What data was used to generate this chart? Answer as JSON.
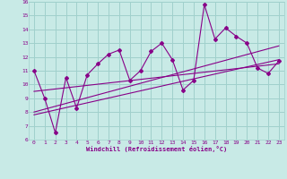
{
  "xlabel": "Windchill (Refroidissement éolien,°C)",
  "xlim": [
    -0.5,
    23.5
  ],
  "ylim": [
    6,
    16
  ],
  "xticks": [
    0,
    1,
    2,
    3,
    4,
    5,
    6,
    7,
    8,
    9,
    10,
    11,
    12,
    13,
    14,
    15,
    16,
    17,
    18,
    19,
    20,
    21,
    22,
    23
  ],
  "yticks": [
    6,
    7,
    8,
    9,
    10,
    11,
    12,
    13,
    14,
    15,
    16
  ],
  "background_color": "#c8eae6",
  "grid_color": "#a0d0cc",
  "line_color": "#880088",
  "line1_x": [
    0,
    1,
    2,
    3,
    4,
    5,
    6,
    7,
    8,
    9,
    10,
    11,
    12,
    13,
    14,
    15,
    16,
    17,
    18,
    19,
    20,
    21,
    22,
    23
  ],
  "line1_y": [
    11,
    9,
    6.5,
    10.5,
    8.3,
    10.7,
    11.5,
    12.2,
    12.5,
    10.3,
    11.0,
    12.4,
    13.0,
    11.8,
    9.6,
    10.3,
    15.8,
    13.3,
    14.1,
    13.5,
    13.0,
    11.2,
    10.8,
    11.7
  ],
  "trend1_x": [
    0,
    23
  ],
  "trend1_y": [
    7.8,
    11.8
  ],
  "trend2_x": [
    0,
    23
  ],
  "trend2_y": [
    8.0,
    12.8
  ],
  "trend3_x": [
    0,
    23
  ],
  "trend3_y": [
    9.5,
    11.5
  ]
}
